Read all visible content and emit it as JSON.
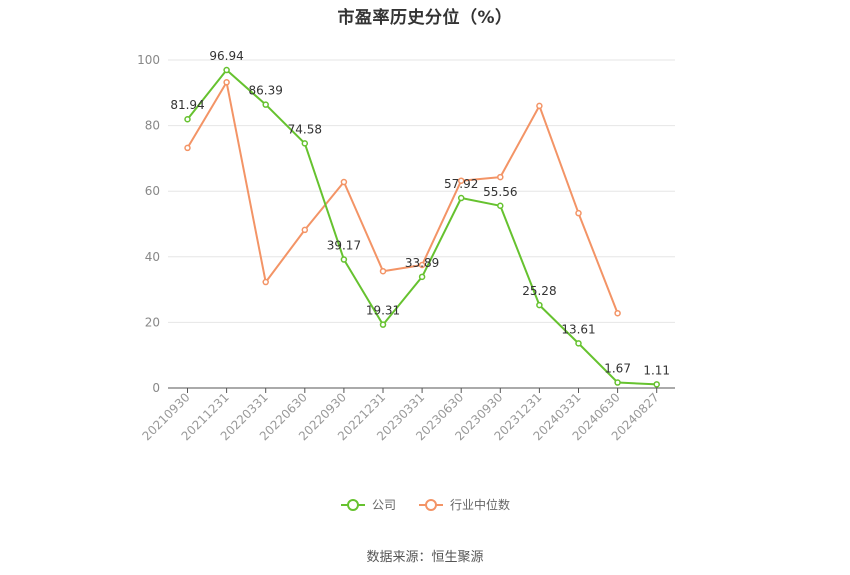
{
  "chart_data": {
    "type": "line",
    "title": "市盈率历史分位（%）",
    "xlabel": "",
    "ylabel": "",
    "ylim": [
      0,
      100
    ],
    "yticks": [
      0,
      20,
      40,
      60,
      80,
      100
    ],
    "grid": true,
    "legend_position": "bottom",
    "categories": [
      "20210930",
      "20211231",
      "20220331",
      "20220630",
      "20220930",
      "20221231",
      "20230331",
      "20230630",
      "20230930",
      "20231231",
      "20240331",
      "20240630",
      "20240827"
    ],
    "series": [
      {
        "name": "公司",
        "color": "#66c22f",
        "values": [
          81.94,
          96.94,
          86.39,
          74.58,
          39.17,
          19.31,
          33.89,
          57.92,
          55.56,
          25.28,
          13.61,
          1.67,
          1.11
        ],
        "data_labels": [
          "81.94",
          "96.94",
          "86.39",
          "74.58",
          "39.17",
          "19.31",
          "33.89",
          "57.92",
          "55.56",
          "25.28",
          "13.61",
          "1.67",
          "1.11"
        ]
      },
      {
        "name": "行业中位数",
        "color": "#f39466",
        "values": [
          73.2,
          93.2,
          32.3,
          48.2,
          62.8,
          35.6,
          37.5,
          63.2,
          64.3,
          86.0,
          53.3,
          22.8,
          null
        ]
      }
    ]
  },
  "source_text": "数据来源：恒生聚源"
}
